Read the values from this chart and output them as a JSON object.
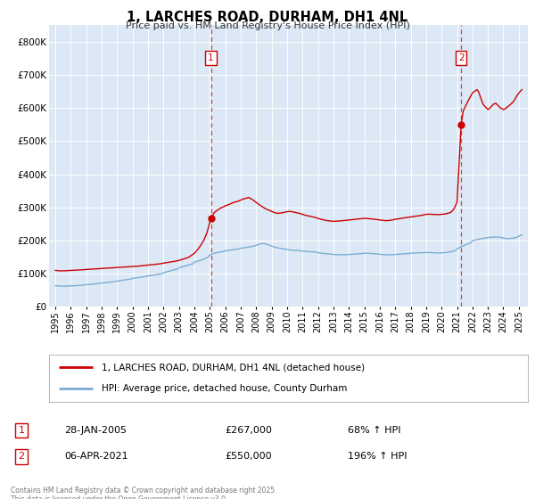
{
  "title": "1, LARCHES ROAD, DURHAM, DH1 4NL",
  "subtitle": "Price paid vs. HM Land Registry's House Price Index (HPI)",
  "plot_bg_color": "#dce8f5",
  "red_color": "#cc0000",
  "blue_color": "#7aadd4",
  "ylim": [
    0,
    850000
  ],
  "yticks": [
    0,
    100000,
    200000,
    300000,
    400000,
    500000,
    600000,
    700000,
    800000
  ],
  "ytick_labels": [
    "£0",
    "£100K",
    "£200K",
    "£300K",
    "£400K",
    "£500K",
    "£600K",
    "£700K",
    "£800K"
  ],
  "xlim_start": 1994.6,
  "xlim_end": 2025.6,
  "event1_x": 2005.07,
  "event1_y": 267000,
  "event2_x": 2021.27,
  "event2_y": 550000,
  "legend_label_red": "1, LARCHES ROAD, DURHAM, DH1 4NL (detached house)",
  "legend_label_blue": "HPI: Average price, detached house, County Durham",
  "annotation1_label": "1",
  "annotation1_date": "28-JAN-2005",
  "annotation1_price": "£267,000",
  "annotation1_hpi": "68% ↑ HPI",
  "annotation2_label": "2",
  "annotation2_date": "06-APR-2021",
  "annotation2_price": "£550,000",
  "annotation2_hpi": "196% ↑ HPI",
  "footnote": "Contains HM Land Registry data © Crown copyright and database right 2025.\nThis data is licensed under the Open Government Licence v3.0.",
  "red_data": [
    [
      1995.0,
      110000
    ],
    [
      1995.2,
      109000
    ],
    [
      1995.4,
      108500
    ],
    [
      1995.6,
      109000
    ],
    [
      1995.8,
      109500
    ],
    [
      1996.0,
      110000
    ],
    [
      1996.2,
      110500
    ],
    [
      1996.4,
      111000
    ],
    [
      1996.6,
      111500
    ],
    [
      1996.8,
      112000
    ],
    [
      1997.0,
      113000
    ],
    [
      1997.2,
      113500
    ],
    [
      1997.4,
      114000
    ],
    [
      1997.6,
      114500
    ],
    [
      1997.8,
      115000
    ],
    [
      1998.0,
      116000
    ],
    [
      1998.2,
      116500
    ],
    [
      1998.4,
      117000
    ],
    [
      1998.6,
      117500
    ],
    [
      1998.8,
      118000
    ],
    [
      1999.0,
      119000
    ],
    [
      1999.2,
      119500
    ],
    [
      1999.4,
      120000
    ],
    [
      1999.6,
      120500
    ],
    [
      1999.8,
      121000
    ],
    [
      2000.0,
      122000
    ],
    [
      2000.2,
      122500
    ],
    [
      2000.4,
      123000
    ],
    [
      2000.6,
      124000
    ],
    [
      2000.8,
      125000
    ],
    [
      2001.0,
      126000
    ],
    [
      2001.2,
      127000
    ],
    [
      2001.4,
      128000
    ],
    [
      2001.6,
      129000
    ],
    [
      2001.8,
      130000
    ],
    [
      2002.0,
      132000
    ],
    [
      2002.2,
      133500
    ],
    [
      2002.4,
      135000
    ],
    [
      2002.6,
      136500
    ],
    [
      2002.8,
      138000
    ],
    [
      2003.0,
      140000
    ],
    [
      2003.2,
      143000
    ],
    [
      2003.4,
      146000
    ],
    [
      2003.6,
      149000
    ],
    [
      2003.8,
      155000
    ],
    [
      2004.0,
      162000
    ],
    [
      2004.2,
      172000
    ],
    [
      2004.4,
      185000
    ],
    [
      2004.6,
      200000
    ],
    [
      2004.8,
      222000
    ],
    [
      2005.07,
      267000
    ],
    [
      2005.3,
      285000
    ],
    [
      2005.5,
      292000
    ],
    [
      2005.7,
      298000
    ],
    [
      2005.9,
      302000
    ],
    [
      2006.0,
      305000
    ],
    [
      2006.2,
      308000
    ],
    [
      2006.4,
      312000
    ],
    [
      2006.6,
      316000
    ],
    [
      2006.8,
      318000
    ],
    [
      2007.0,
      322000
    ],
    [
      2007.2,
      326000
    ],
    [
      2007.4,
      328000
    ],
    [
      2007.5,
      330000
    ],
    [
      2007.6,
      328000
    ],
    [
      2007.8,
      322000
    ],
    [
      2008.0,
      315000
    ],
    [
      2008.2,
      308000
    ],
    [
      2008.4,
      302000
    ],
    [
      2008.6,
      296000
    ],
    [
      2008.8,
      292000
    ],
    [
      2009.0,
      288000
    ],
    [
      2009.2,
      284000
    ],
    [
      2009.4,
      282000
    ],
    [
      2009.6,
      283000
    ],
    [
      2009.8,
      285000
    ],
    [
      2010.0,
      287000
    ],
    [
      2010.2,
      288000
    ],
    [
      2010.4,
      286000
    ],
    [
      2010.6,
      284000
    ],
    [
      2010.8,
      282000
    ],
    [
      2011.0,
      279000
    ],
    [
      2011.2,
      276000
    ],
    [
      2011.4,
      274000
    ],
    [
      2011.6,
      272000
    ],
    [
      2011.8,
      270000
    ],
    [
      2012.0,
      267000
    ],
    [
      2012.2,
      264000
    ],
    [
      2012.4,
      262000
    ],
    [
      2012.6,
      260000
    ],
    [
      2012.8,
      259000
    ],
    [
      2013.0,
      258000
    ],
    [
      2013.2,
      258500
    ],
    [
      2013.4,
      259000
    ],
    [
      2013.6,
      260000
    ],
    [
      2013.8,
      261000
    ],
    [
      2014.0,
      262000
    ],
    [
      2014.2,
      263000
    ],
    [
      2014.4,
      264000
    ],
    [
      2014.6,
      265000
    ],
    [
      2014.8,
      266000
    ],
    [
      2015.0,
      267000
    ],
    [
      2015.2,
      266500
    ],
    [
      2015.4,
      265500
    ],
    [
      2015.6,
      264500
    ],
    [
      2015.8,
      263500
    ],
    [
      2016.0,
      262000
    ],
    [
      2016.2,
      261000
    ],
    [
      2016.4,
      260000
    ],
    [
      2016.6,
      260500
    ],
    [
      2016.8,
      262000
    ],
    [
      2017.0,
      264000
    ],
    [
      2017.2,
      265500
    ],
    [
      2017.4,
      267000
    ],
    [
      2017.6,
      268500
    ],
    [
      2017.8,
      270000
    ],
    [
      2018.0,
      271000
    ],
    [
      2018.2,
      272500
    ],
    [
      2018.4,
      274000
    ],
    [
      2018.6,
      275000
    ],
    [
      2018.8,
      277000
    ],
    [
      2019.0,
      279000
    ],
    [
      2019.2,
      279500
    ],
    [
      2019.4,
      279000
    ],
    [
      2019.6,
      278500
    ],
    [
      2019.8,
      278000
    ],
    [
      2020.0,
      279000
    ],
    [
      2020.2,
      280000
    ],
    [
      2020.4,
      282000
    ],
    [
      2020.6,
      285000
    ],
    [
      2020.8,
      295000
    ],
    [
      2021.0,
      315000
    ],
    [
      2021.27,
      550000
    ],
    [
      2021.4,
      590000
    ],
    [
      2021.6,
      610000
    ],
    [
      2021.8,
      628000
    ],
    [
      2022.0,
      645000
    ],
    [
      2022.2,
      652000
    ],
    [
      2022.3,
      655000
    ],
    [
      2022.4,
      648000
    ],
    [
      2022.5,
      635000
    ],
    [
      2022.6,
      622000
    ],
    [
      2022.7,
      610000
    ],
    [
      2022.8,
      605000
    ],
    [
      2022.9,
      600000
    ],
    [
      2023.0,
      595000
    ],
    [
      2023.1,
      598000
    ],
    [
      2023.2,
      603000
    ],
    [
      2023.3,
      608000
    ],
    [
      2023.4,
      612000
    ],
    [
      2023.5,
      614000
    ],
    [
      2023.6,
      610000
    ],
    [
      2023.7,
      605000
    ],
    [
      2023.8,
      600000
    ],
    [
      2023.9,
      598000
    ],
    [
      2024.0,
      595000
    ],
    [
      2024.1,
      597000
    ],
    [
      2024.2,
      600000
    ],
    [
      2024.3,
      604000
    ],
    [
      2024.4,
      608000
    ],
    [
      2024.5,
      612000
    ],
    [
      2024.6,
      616000
    ],
    [
      2024.7,
      622000
    ],
    [
      2024.8,
      630000
    ],
    [
      2024.9,
      638000
    ],
    [
      2025.0,
      644000
    ],
    [
      2025.1,
      650000
    ],
    [
      2025.2,
      655000
    ]
  ],
  "blue_data": [
    [
      1995.0,
      64000
    ],
    [
      1995.3,
      63000
    ],
    [
      1995.6,
      62500
    ],
    [
      1995.9,
      63000
    ],
    [
      1996.0,
      63500
    ],
    [
      1996.3,
      64000
    ],
    [
      1996.6,
      65000
    ],
    [
      1996.9,
      66000
    ],
    [
      1997.0,
      67000
    ],
    [
      1997.3,
      68000
    ],
    [
      1997.6,
      69500
    ],
    [
      1997.9,
      71000
    ],
    [
      1998.0,
      72000
    ],
    [
      1998.3,
      73500
    ],
    [
      1998.6,
      75000
    ],
    [
      1998.9,
      76500
    ],
    [
      1999.0,
      78000
    ],
    [
      1999.3,
      80000
    ],
    [
      1999.6,
      82000
    ],
    [
      1999.9,
      84000
    ],
    [
      2000.0,
      86000
    ],
    [
      2000.3,
      88000
    ],
    [
      2000.6,
      90000
    ],
    [
      2000.9,
      92000
    ],
    [
      2001.0,
      93500
    ],
    [
      2001.3,
      95500
    ],
    [
      2001.6,
      97500
    ],
    [
      2001.9,
      100000
    ],
    [
      2002.0,
      103000
    ],
    [
      2002.3,
      107000
    ],
    [
      2002.6,
      110500
    ],
    [
      2002.9,
      114000
    ],
    [
      2003.0,
      118000
    ],
    [
      2003.3,
      122000
    ],
    [
      2003.6,
      126000
    ],
    [
      2003.9,
      130000
    ],
    [
      2004.0,
      135000
    ],
    [
      2004.3,
      139000
    ],
    [
      2004.6,
      144000
    ],
    [
      2004.9,
      150000
    ],
    [
      2005.0,
      157000
    ],
    [
      2005.3,
      162000
    ],
    [
      2005.6,
      165000
    ],
    [
      2005.9,
      167000
    ],
    [
      2006.0,
      169000
    ],
    [
      2006.3,
      171000
    ],
    [
      2006.6,
      173000
    ],
    [
      2006.9,
      175000
    ],
    [
      2007.0,
      177000
    ],
    [
      2007.3,
      179000
    ],
    [
      2007.6,
      181000
    ],
    [
      2007.9,
      184000
    ],
    [
      2008.0,
      186000
    ],
    [
      2008.2,
      189000
    ],
    [
      2008.4,
      191000
    ],
    [
      2008.6,
      190000
    ],
    [
      2008.8,
      187000
    ],
    [
      2009.0,
      183000
    ],
    [
      2009.3,
      179000
    ],
    [
      2009.6,
      176000
    ],
    [
      2009.9,
      174000
    ],
    [
      2010.0,
      173000
    ],
    [
      2010.3,
      171000
    ],
    [
      2010.6,
      170000
    ],
    [
      2010.9,
      169000
    ],
    [
      2011.0,
      168000
    ],
    [
      2011.3,
      167000
    ],
    [
      2011.6,
      166000
    ],
    [
      2011.9,
      165000
    ],
    [
      2012.0,
      163000
    ],
    [
      2012.3,
      161500
    ],
    [
      2012.6,
      160000
    ],
    [
      2012.9,
      159000
    ],
    [
      2013.0,
      158000
    ],
    [
      2013.3,
      157500
    ],
    [
      2013.6,
      157000
    ],
    [
      2013.9,
      157500
    ],
    [
      2014.0,
      158000
    ],
    [
      2014.3,
      159000
    ],
    [
      2014.6,
      160000
    ],
    [
      2014.9,
      161000
    ],
    [
      2015.0,
      162000
    ],
    [
      2015.3,
      161500
    ],
    [
      2015.6,
      160500
    ],
    [
      2015.9,
      159500
    ],
    [
      2016.0,
      158500
    ],
    [
      2016.3,
      157500
    ],
    [
      2016.6,
      157000
    ],
    [
      2016.9,
      157500
    ],
    [
      2017.0,
      158000
    ],
    [
      2017.3,
      159000
    ],
    [
      2017.6,
      160000
    ],
    [
      2017.9,
      161000
    ],
    [
      2018.0,
      162000
    ],
    [
      2018.3,
      162500
    ],
    [
      2018.6,
      163000
    ],
    [
      2018.9,
      163500
    ],
    [
      2019.0,
      164000
    ],
    [
      2019.3,
      163500
    ],
    [
      2019.6,
      163000
    ],
    [
      2019.9,
      162500
    ],
    [
      2020.0,
      163000
    ],
    [
      2020.3,
      164000
    ],
    [
      2020.6,
      166000
    ],
    [
      2020.9,
      170000
    ],
    [
      2021.0,
      175000
    ],
    [
      2021.3,
      182000
    ],
    [
      2021.6,
      188000
    ],
    [
      2021.9,
      194000
    ],
    [
      2022.0,
      199000
    ],
    [
      2022.3,
      203000
    ],
    [
      2022.6,
      206000
    ],
    [
      2022.9,
      208000
    ],
    [
      2023.0,
      209000
    ],
    [
      2023.3,
      210000
    ],
    [
      2023.6,
      210500
    ],
    [
      2023.9,
      209000
    ],
    [
      2024.0,
      207000
    ],
    [
      2024.3,
      206000
    ],
    [
      2024.6,
      207000
    ],
    [
      2024.9,
      210000
    ],
    [
      2025.0,
      213000
    ],
    [
      2025.2,
      217000
    ]
  ]
}
